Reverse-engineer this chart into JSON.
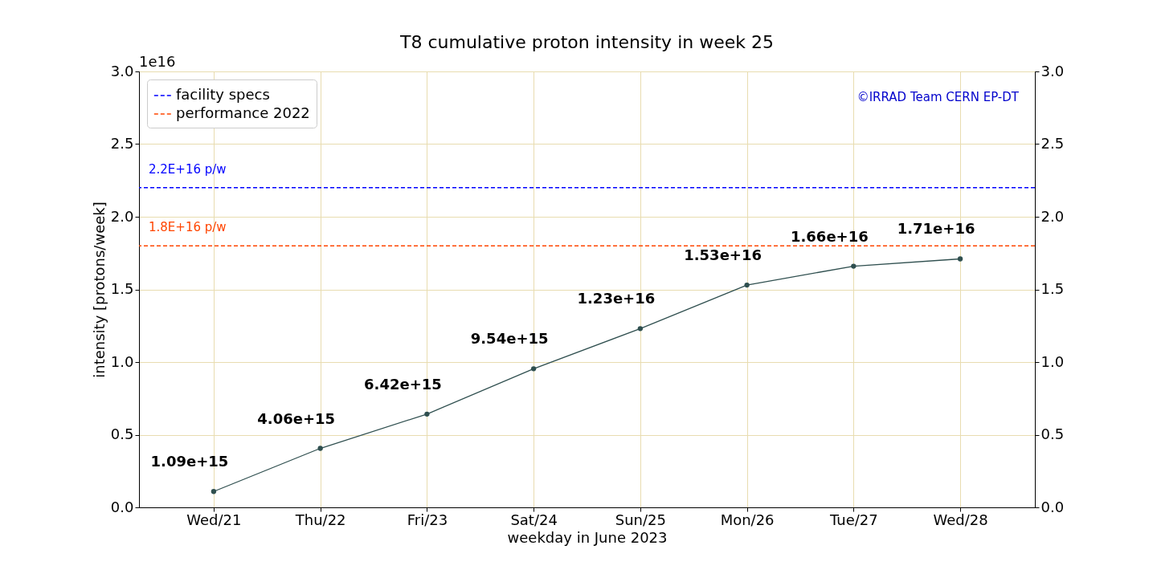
{
  "chart_data": {
    "type": "line",
    "title": "T8 cumulative proton intensity in week 25",
    "xlabel": "weekday in June 2023",
    "ylabel": "intensity [protons/week]",
    "categories": [
      "Wed/21",
      "Thu/22",
      "Fri/23",
      "Sat/24",
      "Sun/25",
      "Mon/26",
      "Tue/27",
      "Wed/28"
    ],
    "series": [
      {
        "color": "#2f4f4f",
        "values": [
          0.109,
          0.406,
          0.642,
          0.954,
          1.23,
          1.53,
          1.66,
          1.71
        ]
      }
    ],
    "marker": "circle",
    "line_style": "solid",
    "ylim": [
      0,
      3.0
    ],
    "yticks": [
      {
        "value": 0,
        "label": "0.0"
      },
      0.5,
      {
        "value": 1,
        "label": "1.0"
      },
      1.5,
      {
        "value": 2,
        "label": "2.0"
      },
      2.5,
      {
        "value": 3,
        "label": "3.0"
      }
    ],
    "y2lim": [
      0,
      3.0
    ],
    "y2ticks": [
      {
        "value": 0,
        "label": "0.0"
      },
      0.5,
      {
        "value": 1,
        "label": "1.0"
      },
      1.5,
      {
        "value": 2,
        "label": "2.0"
      },
      2.5,
      {
        "value": 3,
        "label": "3.0"
      }
    ],
    "ref_lines": [
      {
        "axis": "y",
        "value": 2.2,
        "label": "facility specs",
        "color": "#0000ff",
        "line_style": "dashed"
      },
      {
        "axis": "y",
        "value": 1.8,
        "label": "performance 2022",
        "color": "#ff4500",
        "line_style": "dashed"
      }
    ],
    "annotations": [
      "1e16",
      "©IRRAD Team CERN EP-DT",
      {
        "text": "2.2E+16 p/w",
        "y": 2.2
      },
      {
        "text": "1.8E+16 p/w",
        "y": 1.8
      },
      {
        "text": "1.09e+15",
        "x": "Wed/21",
        "y": 0.109
      },
      {
        "text": "4.06e+15",
        "x": "Thu/22",
        "y": 0.406
      },
      {
        "text": "6.42e+15",
        "x": "Fri/23",
        "y": 0.642
      },
      {
        "text": "9.54e+15",
        "x": "Sat/24",
        "y": 0.954
      },
      {
        "text": "1.23e+16",
        "x": "Sun/25",
        "y": 1.23
      },
      {
        "text": "1.53e+16",
        "x": "Mon/26",
        "y": 1.53
      },
      {
        "text": "1.66e+16",
        "x": "Tue/27",
        "y": 1.66
      },
      {
        "text": "1.71e+16",
        "x": "Wed/28",
        "y": 1.71
      }
    ],
    "grid": true,
    "legend": "top left"
  }
}
